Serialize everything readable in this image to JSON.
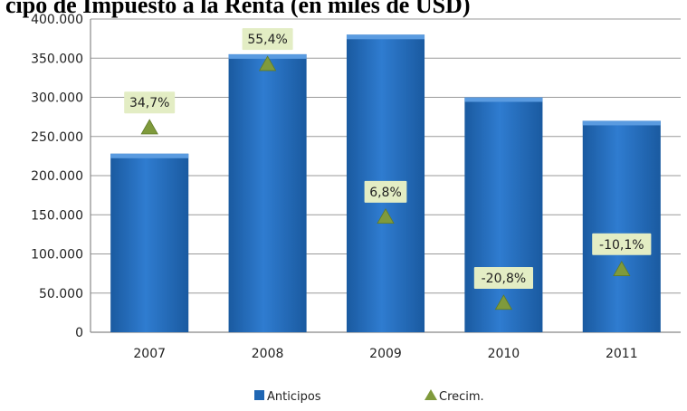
{
  "title": "cipo de Impuesto a la Renta (en miles de USD)",
  "chart_data": {
    "type": "bar",
    "categories": [
      "2007",
      "2008",
      "2009",
      "2010",
      "2011"
    ],
    "series": [
      {
        "name": "Anticipos",
        "values": [
          228000,
          355000,
          380000,
          300000,
          270000
        ],
        "color": "#1f66b3"
      },
      {
        "name": "Crecim.",
        "type": "scatter",
        "values": [
          261000,
          342000,
          147000,
          37000,
          80000
        ],
        "labels": [
          "34,7%",
          "55,4%",
          "6,8%",
          "-20,8%",
          "-10,1%"
        ],
        "color": "#7f9a3c"
      }
    ],
    "ylim": [
      0,
      400000
    ],
    "yticks": [
      "0",
      "50.000",
      "100.000",
      "150.000",
      "200.000",
      "250.000",
      "300.000",
      "350.000",
      "400.000"
    ],
    "grid": true,
    "legend_position": "bottom"
  }
}
